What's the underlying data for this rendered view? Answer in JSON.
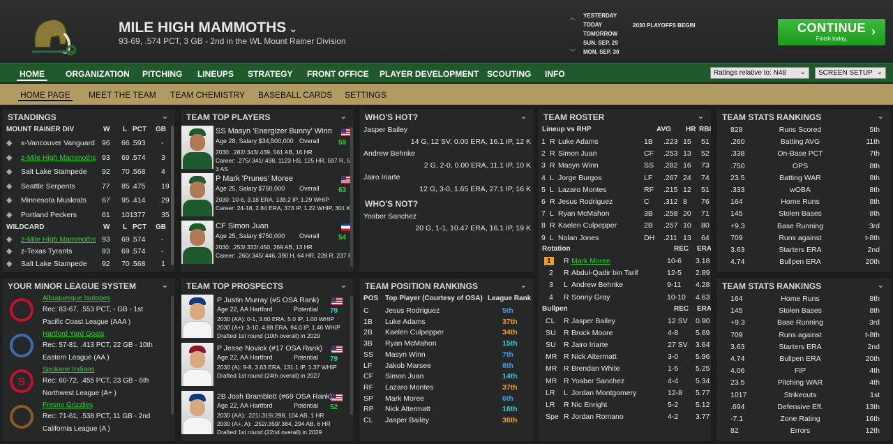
{
  "header": {
    "team_name": "MILE HIGH MAMMOTHS",
    "record": "93-69, .574 PCT, 3 GB - 2nd in the WL Mount Rainer Division",
    "dates": [
      "YESTERDAY",
      "TODAY",
      "TOMORROW",
      "SUN. SEP. 29",
      "MON. SEP. 30"
    ],
    "event": "2030 PLAYOFFS BEGIN",
    "continue_label": "CONTINUE",
    "continue_sub": "Finish today."
  },
  "nav": {
    "items": [
      "HOME",
      "ORGANIZATION",
      "PITCHING",
      "LINEUPS",
      "STRATEGY",
      "FRONT OFFICE",
      "PLAYER DEVELOPMENT",
      "SCOUTING",
      "INFO"
    ],
    "ratings_select": "Ratings relative to: N48",
    "screen_setup": "SCREEN SETUP"
  },
  "subnav": {
    "items": [
      "HOME PAGE",
      "MEET THE TEAM",
      "TEAM CHEMISTRY",
      "BASEBALL CARDS",
      "SETTINGS"
    ]
  },
  "standings": {
    "title": "STANDINGS",
    "div_title": "MOUNT RAINER DIV",
    "wc_title": "WILDCARD",
    "cols": [
      "W",
      "L",
      "PCT",
      "GB"
    ],
    "div": [
      [
        "x-Vancouver Vanguard",
        "96",
        "66",
        ".593",
        "-"
      ],
      [
        "z-Mile High Mammoths",
        "93",
        "69",
        ".574",
        "3"
      ],
      [
        "Salt Lake Stampede",
        "92",
        "70",
        ".568",
        "4"
      ],
      [
        "Seattle Serpents",
        "77",
        "85",
        ".475",
        "19"
      ],
      [
        "Minnesota Muskrats",
        "67",
        "95",
        ".414",
        "29"
      ],
      [
        "Portland Peckers",
        "61",
        "101",
        ".377",
        "35"
      ]
    ],
    "wc": [
      [
        "z-Mile High Mammoths",
        "93",
        "69",
        ".574",
        "-"
      ],
      [
        "z-Texas Tyrants",
        "93",
        "69",
        ".574",
        "-"
      ],
      [
        "Salt Lake Stampede",
        "92",
        "70",
        ".568",
        "1"
      ]
    ]
  },
  "top_players": {
    "title": "TEAM TOP PLAYERS",
    "overall_label": "Overall",
    "players": [
      {
        "name": "SS Masyn 'Energizer Bunny' Winn",
        "info": "Age 28, Salary $34,500,000",
        "ovr": "59",
        "l1": "2030: .282/.343/.439, 561 AB, 16 HR",
        "l2": "Career: .275/.341/.438, 1123 HS, 125 HR, 597 R, 525",
        "l3": "3 AS"
      },
      {
        "name": "P Mark 'Prunes' Moree",
        "info": "Age 25, Salary $750,000",
        "ovr": "63",
        "l1": "2030: 10-6, 3.18 ERA, 138.2 IP, 1.29 WHIP",
        "l2": "Career: 24-18, 2.84 ERA, 373 IP, 1.22 WHIP, 301 K",
        "l3": ""
      },
      {
        "name": "CF Simon Juan",
        "info": "Age 25, Salary $750,000",
        "ovr": "54",
        "l1": "2030: .253/.332/.450, 269 AB, 13 HR",
        "l2": "Career: .260/.345/.446, 390 H, 64 HR, 228 R, 237 RE",
        "l3": ""
      }
    ]
  },
  "whos_hot": {
    "title": "WHO'S HOT?",
    "not_title": "WHO'S NOT?",
    "hot": [
      [
        "Jasper Bailey",
        "14 G, 12 SV, 0.00 ERA, 16.1 IP, 12 K"
      ],
      [
        "Andrew Behnke",
        "2 G, 2-0, 0.00 ERA, 11.1 IP, 10 K"
      ],
      [
        "Jairo Iriarte",
        "12 G, 3-0, 1.65 ERA, 27.1 IP, 16 K"
      ]
    ],
    "not": [
      [
        "Yosber Sanchez",
        "20 G, 1-1, 10.47 ERA, 16.1 IP, 19 K"
      ]
    ]
  },
  "roster": {
    "title": "TEAM ROSTER",
    "lineup_title": "Lineup vs RHP",
    "cols": [
      "AVG",
      "HR",
      "RBI"
    ],
    "lineup": [
      [
        "1",
        "R",
        "Luke Adams",
        "1B",
        ".223",
        "15",
        "51"
      ],
      [
        "2",
        "R",
        "Simon Juan",
        "CF",
        ".253",
        "13",
        "52"
      ],
      [
        "3",
        "R",
        "Masyn Winn",
        "SS",
        ".282",
        "16",
        "73"
      ],
      [
        "4",
        "L",
        "Jorge Burgos",
        "LF",
        ".267",
        "24",
        "74"
      ],
      [
        "5",
        "L",
        "Lazaro Montes",
        "RF",
        ".215",
        "12",
        "51"
      ],
      [
        "6",
        "R",
        "Jesus Rodriguez",
        "C",
        ".312",
        "8",
        "76"
      ],
      [
        "7",
        "L",
        "Ryan McMahon",
        "3B",
        ".258",
        "20",
        "71"
      ],
      [
        "8",
        "R",
        "Kaelen Culpepper",
        "2B",
        ".257",
        "10",
        "80"
      ],
      [
        "9",
        "L",
        "Nolan Jones",
        "DH",
        ".211",
        "13",
        "64"
      ]
    ],
    "rot_title": "Rotation",
    "rot_cols": [
      "REC",
      "ERA"
    ],
    "rotation": [
      [
        "1",
        "R",
        "Mark Moree",
        "10-6",
        "3.18"
      ],
      [
        "2",
        "R",
        "Abdul-Qadir bin Tarif",
        "12-5",
        "2.89"
      ],
      [
        "3",
        "L",
        "Andrew Behnke",
        "9-11",
        "4.28"
      ],
      [
        "4",
        "R",
        "Sonny Gray",
        "10-10",
        "4.63"
      ]
    ],
    "pen_title": "Bullpen",
    "bullpen": [
      [
        "CL",
        "R",
        "Jasper Bailey",
        "12 SV",
        "0.90"
      ],
      [
        "SU",
        "R",
        "Brock Moore",
        "4-8",
        "5.69"
      ],
      [
        "SU",
        "R",
        "Jairo Iriarte",
        "27 SV",
        "3.64"
      ],
      [
        "MR",
        "R",
        "Nick Altermatt",
        "3-0",
        "5.96"
      ],
      [
        "MR",
        "R",
        "Brendan White",
        "1-5",
        "5.25"
      ],
      [
        "MR",
        "R",
        "Yosber Sanchez",
        "4-4",
        "5.34"
      ],
      [
        "LR",
        "L",
        "Jordan Montgomery",
        "12-8",
        "5.77"
      ],
      [
        "LR",
        "R",
        "Nic Enright",
        "5-2",
        "5.12"
      ],
      [
        "Spe",
        "R",
        "Jordan Romano",
        "4-2",
        "3.77"
      ]
    ]
  },
  "stats1": {
    "title": "TEAM STATS RANKINGS",
    "rows": [
      [
        "828",
        "Runs Scored",
        "5th"
      ],
      [
        ".260",
        "Batting AVG",
        "11th"
      ],
      [
        ".338",
        "On-Base PCT",
        "7th"
      ],
      [
        ".750",
        "OPS",
        "8th"
      ],
      [
        "23.5",
        "Batting WAR",
        "8th"
      ],
      [
        ".333",
        "wOBA",
        "8th"
      ],
      [
        "164",
        "Home Runs",
        "8th"
      ],
      [
        "145",
        "Stolen Bases",
        "8th"
      ],
      [
        "+9.3",
        "Base Running",
        "3rd"
      ],
      [
        "709",
        "Runs against",
        "t-8th"
      ],
      [
        "3.63",
        "Starters ERA",
        "2nd"
      ],
      [
        "4.74",
        "Bullpen ERA",
        "20th"
      ]
    ]
  },
  "stats2": {
    "title": "TEAM STATS RANKINGS",
    "rows": [
      [
        "164",
        "Home Runs",
        "8th"
      ],
      [
        "145",
        "Stolen Bases",
        "8th"
      ],
      [
        "+9.3",
        "Base Running",
        "3rd"
      ],
      [
        "709",
        "Runs against",
        "t-8th"
      ],
      [
        "3.63",
        "Starters ERA",
        "2nd"
      ],
      [
        "4.74",
        "Bullpen ERA",
        "20th"
      ],
      [
        "4.06",
        "FIP",
        "4th"
      ],
      [
        "23.5",
        "Pitching WAR",
        "4th"
      ],
      [
        "1017",
        "Strikeouts",
        "1st"
      ],
      [
        ".694",
        "Defensive Eff.",
        "13th"
      ],
      [
        "-7.1",
        "Zone Rating",
        "16th"
      ],
      [
        "82",
        "Errors",
        "12th"
      ]
    ]
  },
  "minors": {
    "title": "YOUR MINOR LEAGUE SYSTEM",
    "teams": [
      {
        "name": "Albuquerque Isotopes",
        "rec": "Rec: 83-67, .553 PCT, - GB - 1st",
        "lg": "Pacific Coast League (AAA )"
      },
      {
        "name": "Hartford Yard Goats",
        "rec": "Rec: 57-81, .413 PCT, 22 GB - 10th",
        "lg": "Eastern League (AA )"
      },
      {
        "name": "Spokane Indians",
        "rec": "Rec: 60-72, .455 PCT, 23 GB - 6th",
        "lg": "Northwest League (A+ )"
      },
      {
        "name": "Fresno Grizzlies",
        "rec": "Rec: 71-61, .538 PCT, 11 GB - 2nd",
        "lg": "California League (A )"
      }
    ]
  },
  "prospects": {
    "title": "TEAM TOP PROSPECTS",
    "potential_label": "Potential",
    "players": [
      {
        "name": "P Justin Murray (#5 OSA Rank)",
        "info": "Age 22, AA Hartford",
        "pot": "79",
        "l1": "2030 (AA): 0-1, 3.60 ERA, 5.0 IP, 1.00 WHIP",
        "l2": "2030 (A+): 3-10, 4.88 ERA, 94.0 IP, 1.46 WHIP",
        "l3": "Drafted 1st round (10th overall) in 2029"
      },
      {
        "name": "P Jesse Novick (#17 OSA Rank)",
        "info": "Age 22, AA Hartford",
        "pot": "79",
        "l1": "2030 (A): 9-8, 3.63 ERA, 131.1 IP, 1.37 WHIP",
        "l2": "Drafted 1st round (24th overall) in 2027",
        "l3": ""
      },
      {
        "name": "2B Josh Bramblett (#69 OSA Rank)",
        "info": "Age 22, AA Hartford",
        "pot": "52",
        "l1": "2030 (AA): .221/.319/.298, 104 AB, 1 HR",
        "l2": "2030 (A+, A): .252/.359/.384, 294 AB, 6 HR",
        "l3": "Drafted 1st round (22nd overall) in 2029"
      }
    ]
  },
  "positions": {
    "title": "TEAM POSITION RANKINGS",
    "cols": [
      "POS",
      "Top Player (Courtesy of OSA)",
      "League Rank"
    ],
    "rows": [
      [
        "C",
        "Jesus Rodriguez",
        "5th",
        "blue"
      ],
      [
        "1B",
        "Luke Adams",
        "37th",
        "orange"
      ],
      [
        "2B",
        "Kaelen Culpepper",
        "34th",
        "orange"
      ],
      [
        "3B",
        "Ryan McMahon",
        "15th",
        "cyan"
      ],
      [
        "SS",
        "Masyn Winn",
        "7th",
        "blue"
      ],
      [
        "LF",
        "Jakob Marsee",
        "8th",
        "blue"
      ],
      [
        "CF",
        "Simon Juan",
        "14th",
        "cyan"
      ],
      [
        "RF",
        "Lazaro Montes",
        "37th",
        "orange"
      ],
      [
        "SP",
        "Mark Moree",
        "6th",
        "blue"
      ],
      [
        "RP",
        "Nick Altermatt",
        "16th",
        "cyan"
      ],
      [
        "CL",
        "Jasper Bailey",
        "36th",
        "orange"
      ]
    ]
  }
}
